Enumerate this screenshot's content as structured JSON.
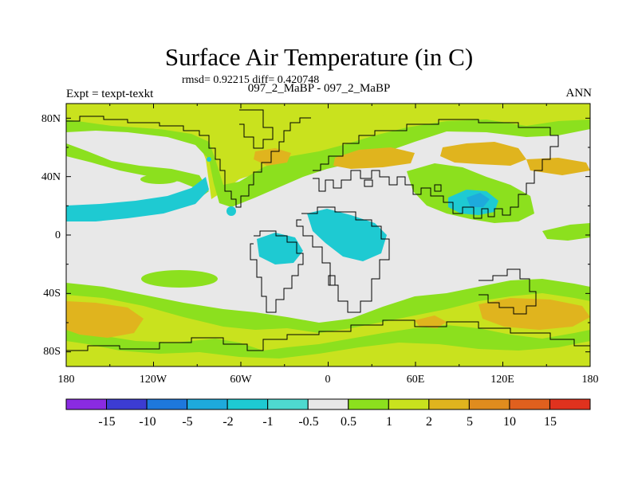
{
  "title": "Surface Air Temperature (in C)",
  "stats": "rmsd= 0.92215 diff= 0.420748",
  "subtitle": "097_2_MaBP - 097_2_MaBP",
  "experiment": "Expt = texpt-texkt",
  "season": "ANN",
  "map": {
    "lon_ticks": [
      "180",
      "120W",
      "60W",
      "0",
      "60E",
      "120E",
      "180"
    ],
    "lat_ticks": [
      "80N",
      "40N",
      "0",
      "40S",
      "80S"
    ]
  },
  "colorbar": {
    "labels": [
      "-15",
      "-10",
      "-5",
      "-2",
      "-1",
      "-0.5",
      "0.5",
      "1",
      "2",
      "5",
      "10",
      "15"
    ],
    "colors": [
      "#8a2be2",
      "#3c3cd2",
      "#1e78dc",
      "#1eaadc",
      "#1ecad2",
      "#4ed9cf",
      "#e8e8e8",
      "#8ce01e",
      "#c9e21e",
      "#e0b41e",
      "#e08c1e",
      "#e0601e",
      "#e0321e"
    ]
  },
  "palette": {
    "neutral": "#e8e8e8",
    "green": "#8ce01e",
    "yellow": "#c9e21e",
    "orange": "#e0b41e",
    "cyan": "#1ecad2",
    "deep_cyan": "#1eaadc"
  }
}
